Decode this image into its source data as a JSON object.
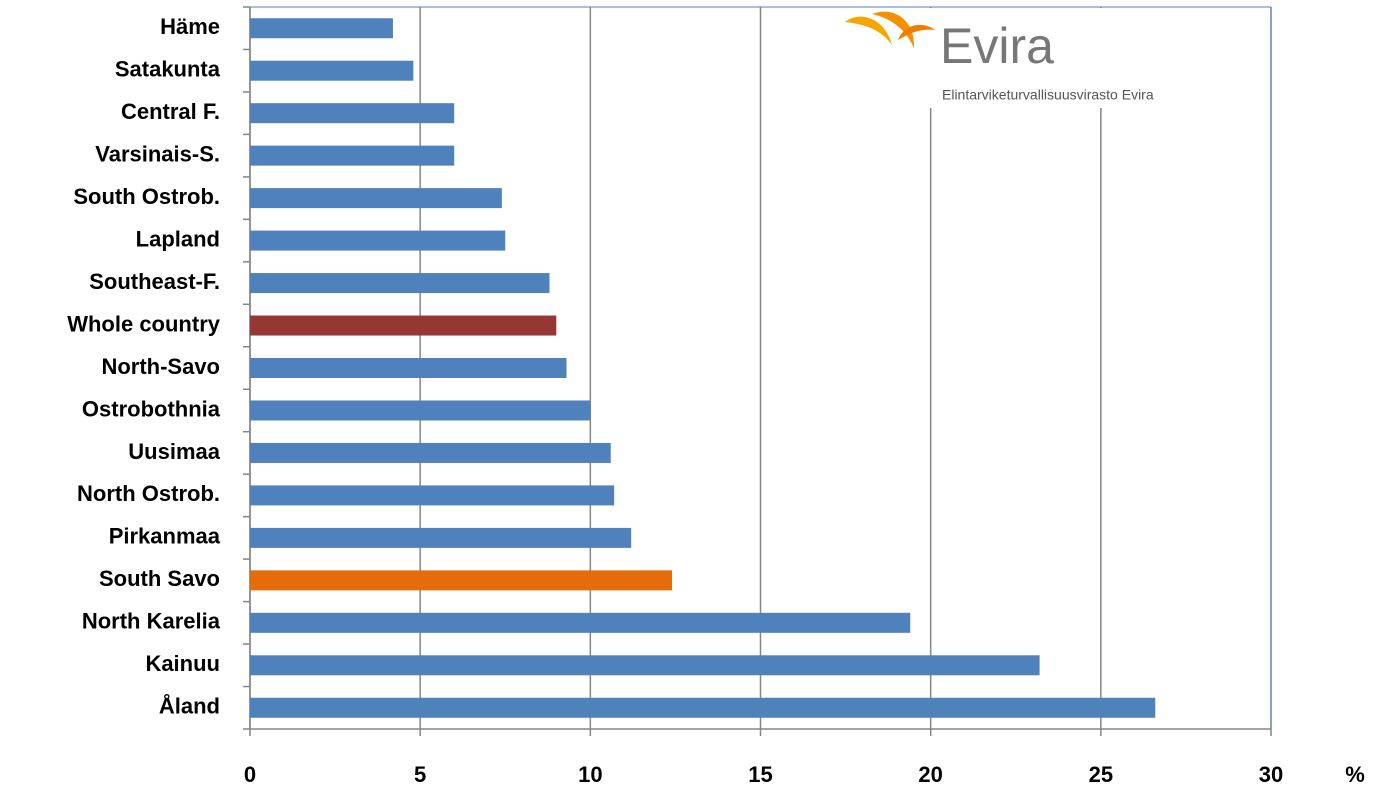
{
  "chart_data": {
    "type": "barh",
    "categories": [
      "Häme",
      "Satakunta",
      "Central F.",
      "Varsinais-S.",
      "South Ostrob.",
      "Lapland",
      "Southeast-F.",
      "Whole country",
      "North-Savo",
      "Ostrobothnia",
      "Uusimaa",
      "North Ostrob.",
      "Pirkanmaa",
      "South Savo",
      "North Karelia",
      "Kainuu",
      "Åland"
    ],
    "values": [
      4.2,
      4.8,
      6.0,
      6.0,
      7.4,
      7.5,
      8.8,
      9.0,
      9.3,
      10.0,
      10.6,
      10.7,
      11.2,
      12.4,
      19.4,
      23.2,
      26.6
    ],
    "colors": [
      "#4f81bd",
      "#4f81bd",
      "#4f81bd",
      "#4f81bd",
      "#4f81bd",
      "#4f81bd",
      "#4f81bd",
      "#953735",
      "#4f81bd",
      "#4f81bd",
      "#4f81bd",
      "#4f81bd",
      "#4f81bd",
      "#e46c0a",
      "#4f81bd",
      "#4f81bd",
      "#4f81bd"
    ],
    "xlabel": "%",
    "xlim": [
      0,
      30
    ],
    "xticks": [
      0,
      5,
      10,
      15,
      20,
      25,
      30
    ],
    "grid": true,
    "logo": {
      "name": "Evira",
      "subtitle": "Elintarviketurvallisuusvirasto Evira"
    }
  }
}
